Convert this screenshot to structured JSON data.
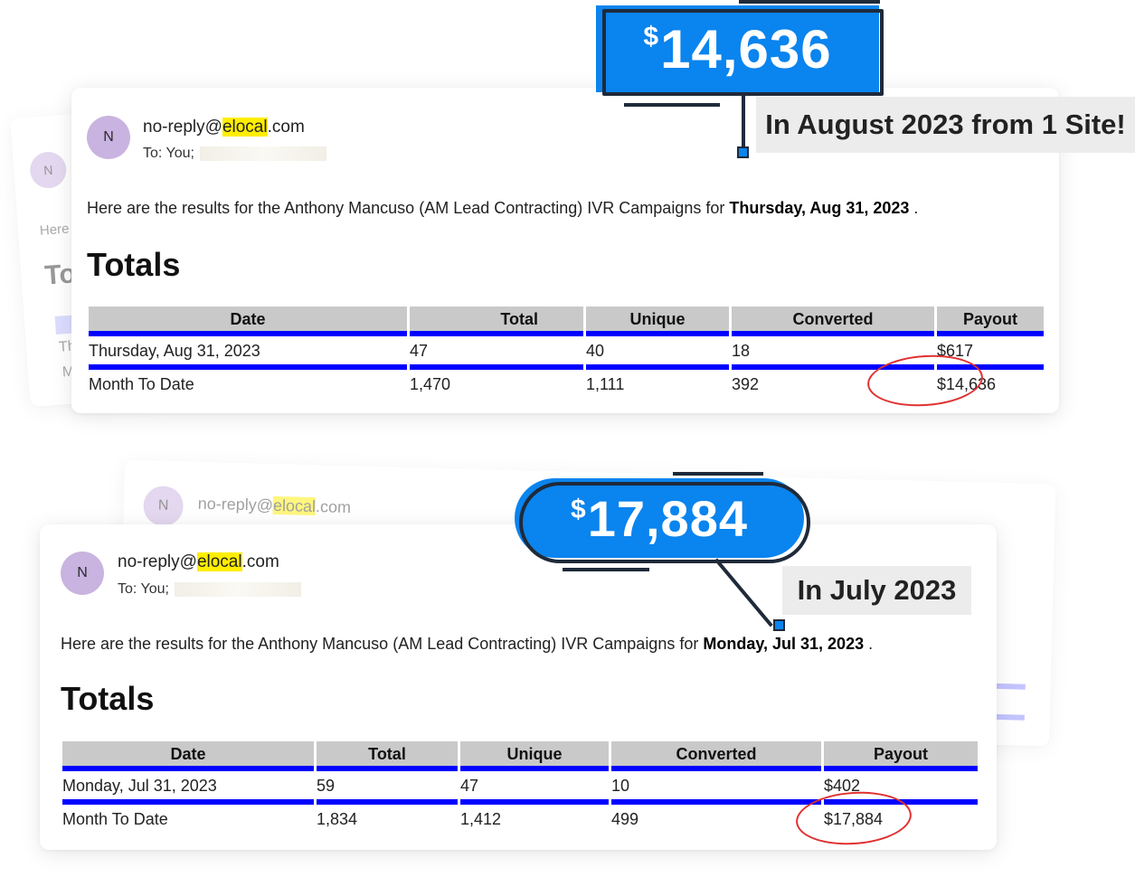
{
  "email_top": {
    "avatar_initial": "N",
    "from_prefix": "no-reply@",
    "from_highlight": "elocal",
    "from_suffix": ".com",
    "to_label": "To:  You;",
    "intro_text": "Here are the results for the Anthony Mancuso (AM Lead Contracting) IVR Campaigns for ",
    "intro_date": "Thursday, Aug 31, 2023",
    "intro_end": " .",
    "section_title": "Totals",
    "columns": [
      "Date",
      "Total",
      "Unique",
      "Converted",
      "Payout"
    ],
    "rows": [
      [
        "Thursday, Aug 31, 2023",
        "47",
        "40",
        "18",
        "$617"
      ],
      [
        "Month To Date",
        "1,470",
        "1,111",
        "392",
        "$14,636"
      ]
    ]
  },
  "email_bottom": {
    "avatar_initial": "N",
    "from_prefix": "no-reply@",
    "from_highlight": "elocal",
    "from_suffix": ".com",
    "to_label": "To:  You;",
    "intro_text": "Here are the results for the Anthony Mancuso (AM Lead Contracting) IVR Campaigns for ",
    "intro_date": "Monday, Jul 31, 2023",
    "intro_end": " .",
    "section_title": "Totals",
    "columns": [
      "Date",
      "Total",
      "Unique",
      "Converted",
      "Payout"
    ],
    "rows": [
      [
        "Monday, Jul 31, 2023",
        "59",
        "47",
        "10",
        "$402"
      ],
      [
        "Month To Date",
        "1,834",
        "1,412",
        "499",
        "$17,884"
      ]
    ]
  },
  "ghost_top": {
    "avatar_initial": "N",
    "intro_fragment": "Here",
    "title_fragment": "To",
    "row_fragment_1": "Th",
    "row_fragment_2": "Mo"
  },
  "ghost_bottom": {
    "avatar_initial": "N",
    "from_prefix": "no-reply@",
    "from_highlight": "elocal",
    "from_suffix": ".com"
  },
  "callouts": {
    "august": {
      "currency": "$",
      "amount": "14,636",
      "caption": "In August 2023 from 1 Site!"
    },
    "july": {
      "currency": "$",
      "amount": "17,884",
      "caption": "In July 2023"
    }
  },
  "colors": {
    "accent_blue": "#0a84ee",
    "table_rule": "#0000ff",
    "highlight": "#ffee00",
    "circle_red": "#e03030"
  }
}
